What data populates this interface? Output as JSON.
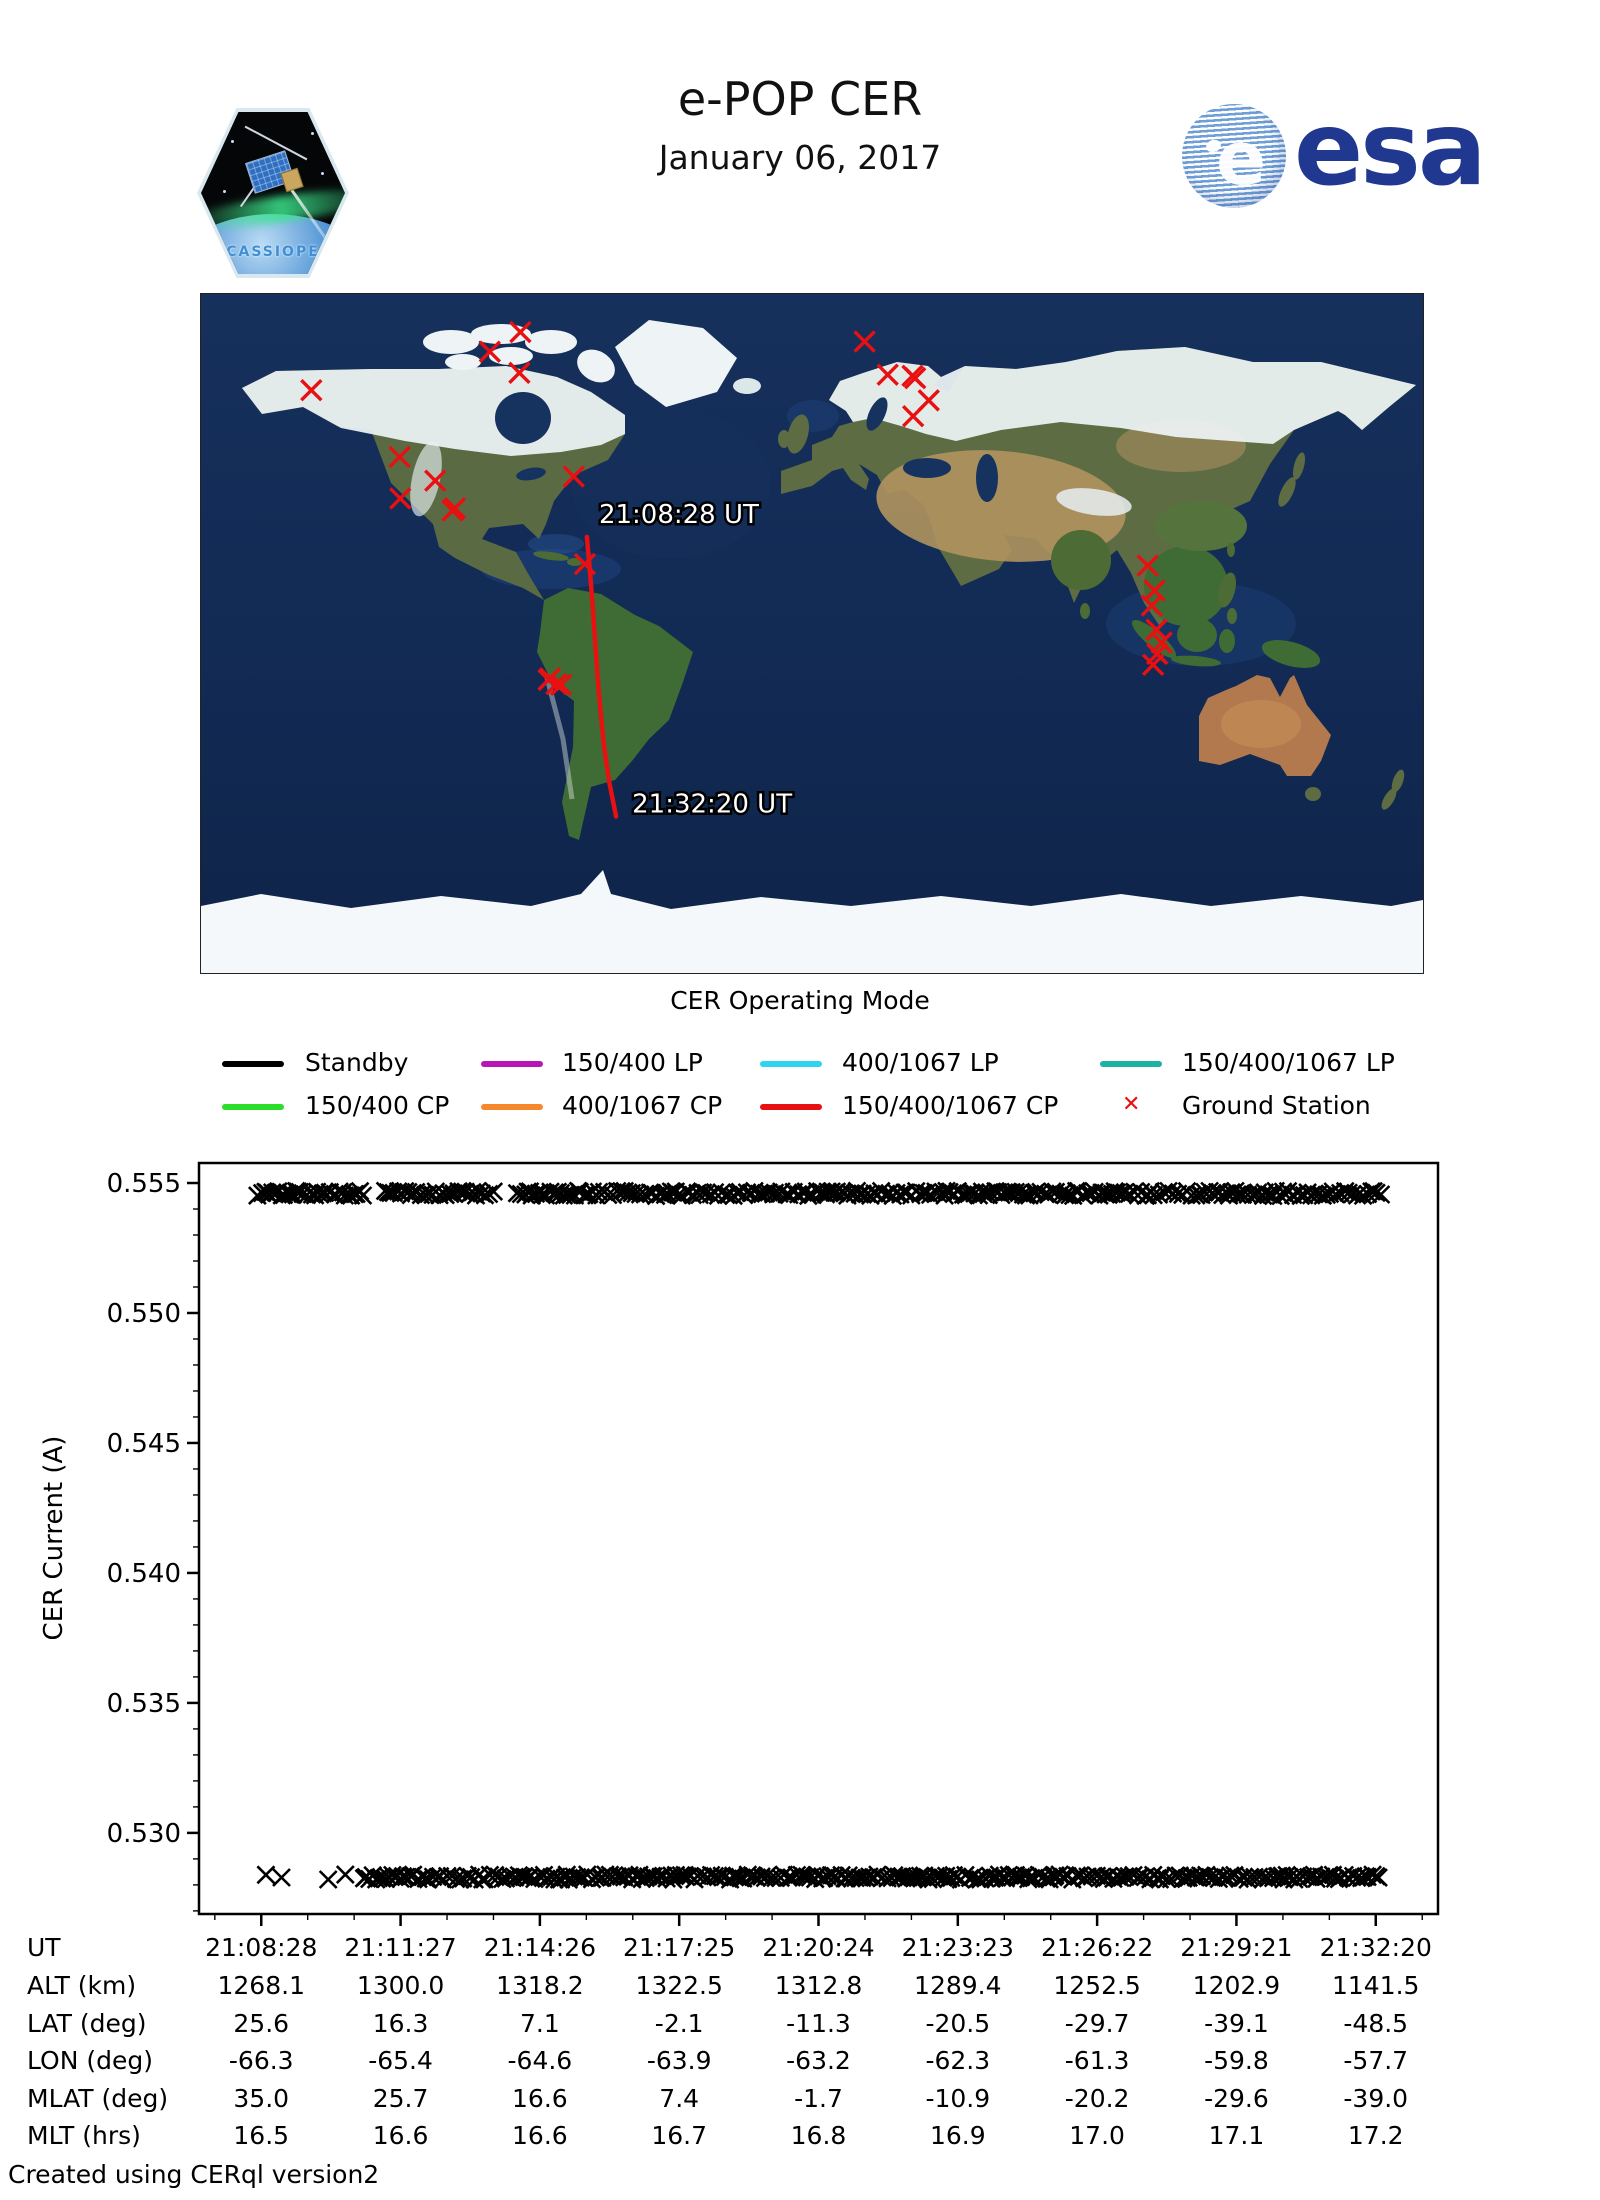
{
  "header": {
    "title": "e-POP CER",
    "date": "January 06, 2017",
    "patch_label": "CASSIOPE",
    "esa_text": "esa",
    "esa_color": "#20388f"
  },
  "map": {
    "start_time_label": "21:08:28 UT",
    "end_time_label": "21:32:20 UT",
    "track": {
      "color": "#e81010",
      "points_lonlat": [
        [
          -66.3,
          25.6
        ],
        [
          -65.4,
          16.3
        ],
        [
          -64.6,
          7.1
        ],
        [
          -63.9,
          -2.1
        ],
        [
          -63.2,
          -11.3
        ],
        [
          -62.3,
          -20.5
        ],
        [
          -61.3,
          -29.7
        ],
        [
          -59.8,
          -39.1
        ],
        [
          -57.7,
          -48.5
        ]
      ]
    },
    "ground_stations": {
      "color": "#e81010",
      "lonlat": [
        [
          -147.5,
          64.5
        ],
        [
          -85.9,
          79.9
        ],
        [
          -94.9,
          74.7
        ],
        [
          -86.2,
          69.1
        ],
        [
          -121.5,
          46.8
        ],
        [
          -111.0,
          40.5
        ],
        [
          -121.3,
          35.8
        ],
        [
          -105.2,
          33.2
        ],
        [
          -105.9,
          32.6
        ],
        [
          -70.2,
          41.6
        ],
        [
          -66.9,
          18.4
        ],
        [
          -77.2,
          -11.9
        ],
        [
          -77.6,
          -12.3
        ],
        [
          -75.3,
          -13.4
        ],
        [
          -73.9,
          -13.6
        ],
        [
          15.5,
          77.4
        ],
        [
          22.3,
          68.6
        ],
        [
          29.6,
          68.3
        ],
        [
          30.4,
          67.7
        ],
        [
          34.4,
          61.8
        ],
        [
          29.8,
          57.6
        ],
        [
          98.9,
          18.0
        ],
        [
          100.9,
          11.4
        ],
        [
          100.1,
          7.4
        ],
        [
          101.5,
          1.0
        ],
        [
          103.0,
          -2.4
        ],
        [
          101.7,
          -5.4
        ],
        [
          100.5,
          -8.3
        ]
      ]
    }
  },
  "legend": {
    "title": "CER Operating Mode",
    "items": [
      {
        "label": "Standby",
        "color": "#000000",
        "type": "line"
      },
      {
        "label": "150/400 LP",
        "color": "#b516b5",
        "type": "line"
      },
      {
        "label": "400/1067 LP",
        "color": "#2fd4f0",
        "type": "line"
      },
      {
        "label": "150/400/1067 LP",
        "color": "#1eb2a6",
        "type": "line"
      },
      {
        "label": "150/400 CP",
        "color": "#2ade2a",
        "type": "line"
      },
      {
        "label": "400/1067 CP",
        "color": "#f6882b",
        "type": "line"
      },
      {
        "label": "150/400/1067 CP",
        "color": "#e81010",
        "type": "line"
      },
      {
        "label": "Ground Station",
        "color": "#e81010",
        "type": "marker"
      }
    ]
  },
  "chart_data": {
    "type": "scatter",
    "ylabel": "CER Current (A)",
    "marker": "x",
    "marker_color": "#000000",
    "ylim": [
      0.52688,
      0.55577
    ],
    "yticks": [
      0.53,
      0.535,
      0.54,
      0.545,
      0.55,
      0.555
    ],
    "ytick_labels": [
      "0.530",
      "0.535",
      "0.540",
      "0.545",
      "0.550",
      "0.555"
    ],
    "y_minor_step": 0.001,
    "xlim_s": [
      -80,
      1512
    ],
    "xtick_seconds": [
      0,
      179,
      358,
      537,
      716,
      895,
      1074,
      1253,
      1432
    ],
    "xtick_labels": [
      "21:08:28",
      "21:11:27",
      "21:14:26",
      "21:17:25",
      "21:20:24",
      "21:23:23",
      "21:26:22",
      "21:29:21",
      "21:32:20"
    ],
    "x_minor_step_s": 59.67,
    "bands": [
      {
        "name": "upper-current-band",
        "y": 0.5546,
        "t_start": -5,
        "t_end": 1440,
        "gaps_s": [
          [
            131,
            158
          ],
          [
            300,
            322
          ]
        ],
        "lead_markers_s": []
      },
      {
        "name": "lower-current-band",
        "y": 0.5283,
        "t_start": 132,
        "t_end": 1440,
        "gaps_s": [],
        "lead_markers_s": [
          6,
          26,
          86,
          108
        ]
      }
    ]
  },
  "table": {
    "rows": [
      {
        "label": "UT",
        "values": [
          "21:08:28",
          "21:11:27",
          "21:14:26",
          "21:17:25",
          "21:20:24",
          "21:23:23",
          "21:26:22",
          "21:29:21",
          "21:32:20"
        ]
      },
      {
        "label": "ALT (km)",
        "values": [
          "1268.1",
          "1300.0",
          "1318.2",
          "1322.5",
          "1312.8",
          "1289.4",
          "1252.5",
          "1202.9",
          "1141.5"
        ]
      },
      {
        "label": "LAT (deg)",
        "values": [
          "25.6",
          "16.3",
          "7.1",
          "-2.1",
          "-11.3",
          "-20.5",
          "-29.7",
          "-39.1",
          "-48.5"
        ]
      },
      {
        "label": "LON (deg)",
        "values": [
          "-66.3",
          "-65.4",
          "-64.6",
          "-63.9",
          "-63.2",
          "-62.3",
          "-61.3",
          "-59.8",
          "-57.7"
        ]
      },
      {
        "label": "MLAT (deg)",
        "values": [
          "35.0",
          "25.7",
          "16.6",
          "7.4",
          "-1.7",
          "-10.9",
          "-20.2",
          "-29.6",
          "-39.0"
        ]
      },
      {
        "label": "MLT (hrs)",
        "values": [
          "16.5",
          "16.6",
          "16.6",
          "16.7",
          "16.8",
          "16.9",
          "17.0",
          "17.1",
          "17.2"
        ]
      }
    ]
  },
  "footer": "Created using CERql version2"
}
